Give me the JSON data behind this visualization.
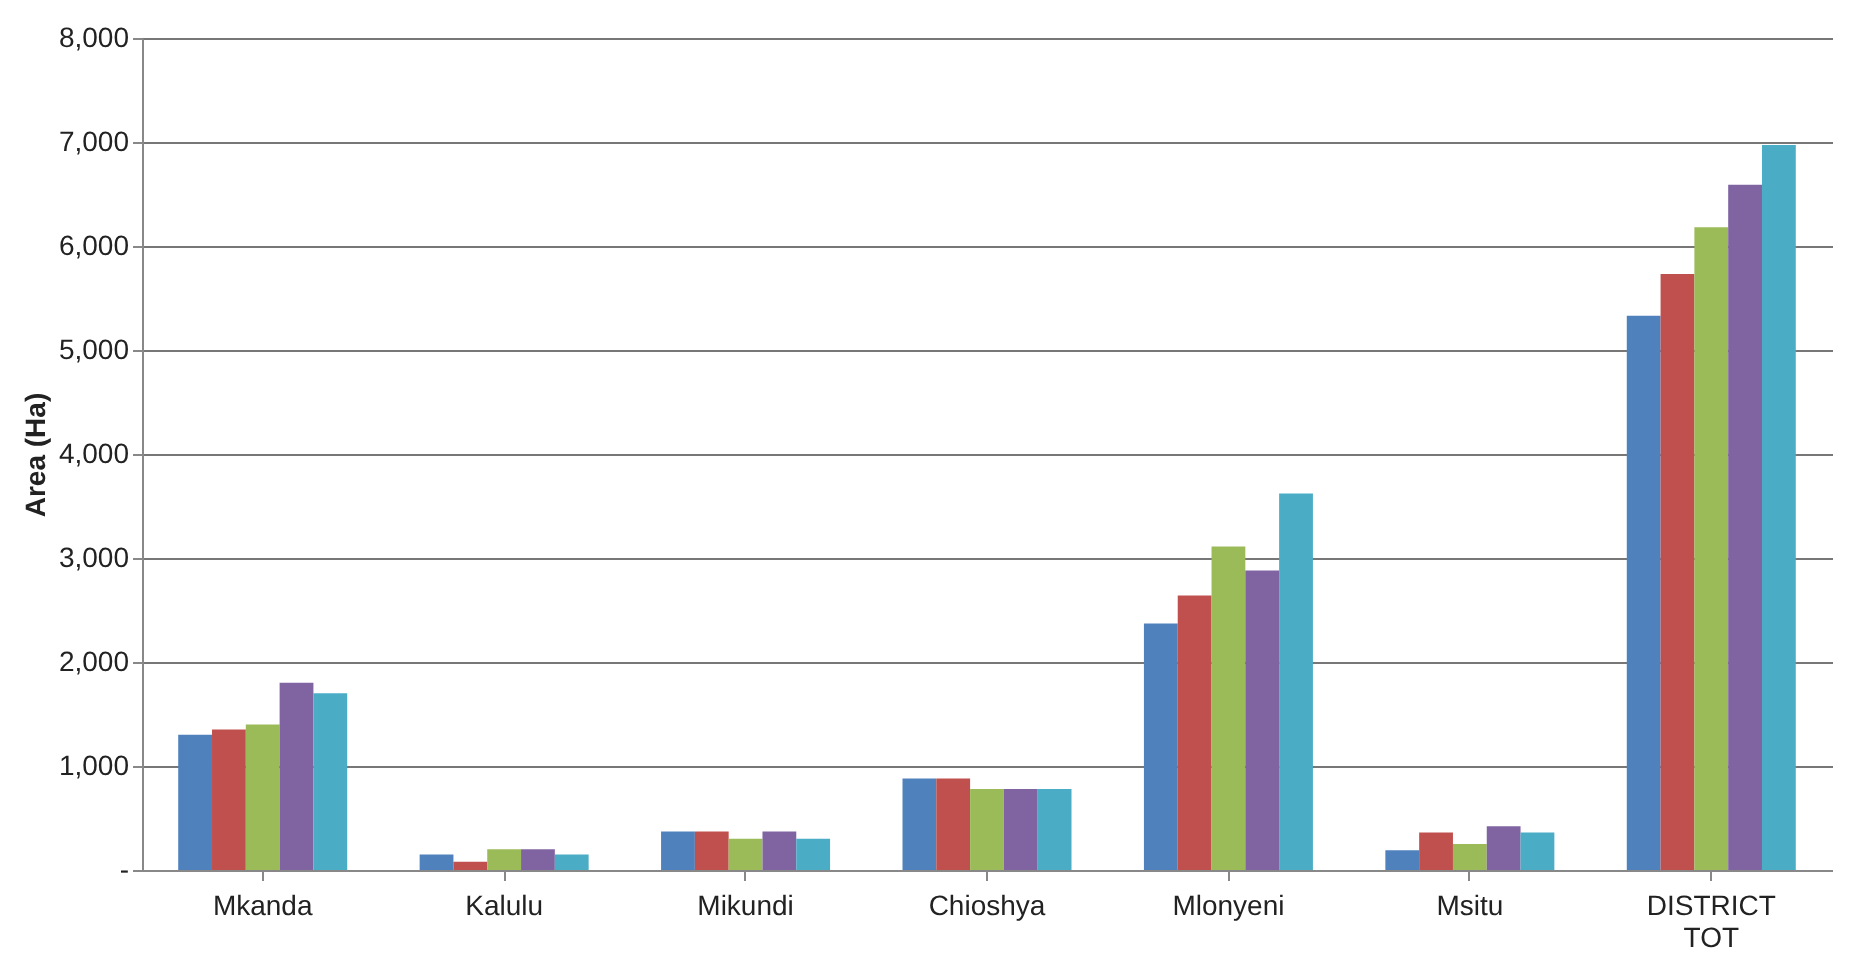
{
  "chart_data": {
    "type": "bar",
    "ylabel": "Area (Ha)",
    "categories": [
      "Mkanda",
      "Kalulu",
      "Mikundi",
      "Chioshya",
      "Mlonyeni",
      "Msitu",
      "DISTRICT TOT"
    ],
    "series": [
      {
        "color": "#4f81bd",
        "values": [
          1300,
          150,
          370,
          880,
          2370,
          190,
          5330
        ]
      },
      {
        "color": "#c0504d",
        "values": [
          1350,
          80,
          370,
          880,
          2640,
          360,
          5730
        ]
      },
      {
        "color": "#9bbb59",
        "values": [
          1400,
          200,
          300,
          780,
          3110,
          250,
          6180
        ]
      },
      {
        "color": "#8064a2",
        "values": [
          1800,
          200,
          370,
          780,
          2880,
          420,
          6590
        ]
      },
      {
        "color": "#4bacc6",
        "values": [
          1700,
          150,
          300,
          780,
          3620,
          360,
          6970
        ]
      }
    ],
    "ylim": [
      0,
      8000
    ],
    "yticks": [
      {
        "value": 0,
        "label": "-"
      },
      {
        "value": 1000,
        "label": "1,000"
      },
      {
        "value": 2000,
        "label": "2,000"
      },
      {
        "value": 3000,
        "label": "3,000"
      },
      {
        "value": 4000,
        "label": "4,000"
      },
      {
        "value": 5000,
        "label": "5,000"
      },
      {
        "value": 6000,
        "label": "6,000"
      },
      {
        "value": 7000,
        "label": "7,000"
      },
      {
        "value": 8000,
        "label": "8,000"
      }
    ],
    "grid": "y",
    "legend": false
  }
}
